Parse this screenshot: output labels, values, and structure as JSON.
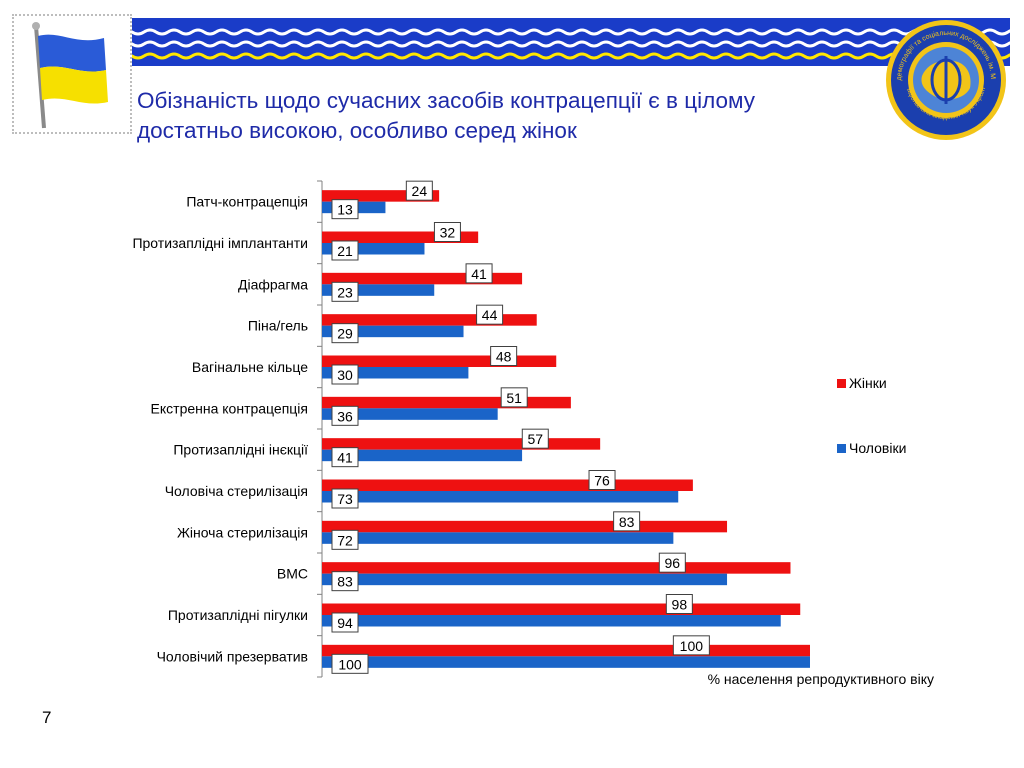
{
  "slide": {
    "title_line1": "Обізнаність щодо сучасних засобів контрацепції є в цілому",
    "title_line2": "достатньо високою, особливо серед жінок",
    "page_number": "7"
  },
  "icons": {
    "flag": "ukraine-flag-icon",
    "emblem": "institute-emblem-icon",
    "wave": "wave-pattern-icon"
  },
  "emblem": {
    "ring_text_top": "Інститут демографії та соціальних досліджень ім. М.В. Птухи",
    "ring_text_bottom": "Національна академія наук України"
  },
  "colors": {
    "women": "#ee1111",
    "men": "#1a64c8",
    "title": "#1e2aa8",
    "band": "#1a3cc8",
    "flag_blue": "#2a5bd7",
    "flag_yellow": "#f6e000"
  },
  "chart_data": {
    "type": "bar",
    "orientation": "horizontal",
    "categories": [
      "Патч-контрацепція",
      "Протизаплідні імплантанти",
      "Діафрагма",
      "Піна/гель",
      "Вагінальне кільце",
      "Екстренна контрацепція",
      "Протизаплідні інєкції",
      "Чоловіча стерилізація",
      "Жіноча стерилізація",
      "ВМС",
      "Протизаплідні пігулки",
      "Чоловічий презерватив"
    ],
    "series": [
      {
        "name": "Жінки",
        "values": [
          24,
          32,
          41,
          44,
          48,
          51,
          57,
          76,
          83,
          96,
          98,
          100
        ]
      },
      {
        "name": "Чоловіки",
        "values": [
          13,
          21,
          23,
          29,
          30,
          36,
          41,
          73,
          72,
          83,
          94,
          100
        ]
      }
    ],
    "xlim": [
      0,
      100
    ],
    "xlabel": "% населення репродуктивного віку",
    "legend_position": "right",
    "grid": false,
    "data_labels": true
  }
}
